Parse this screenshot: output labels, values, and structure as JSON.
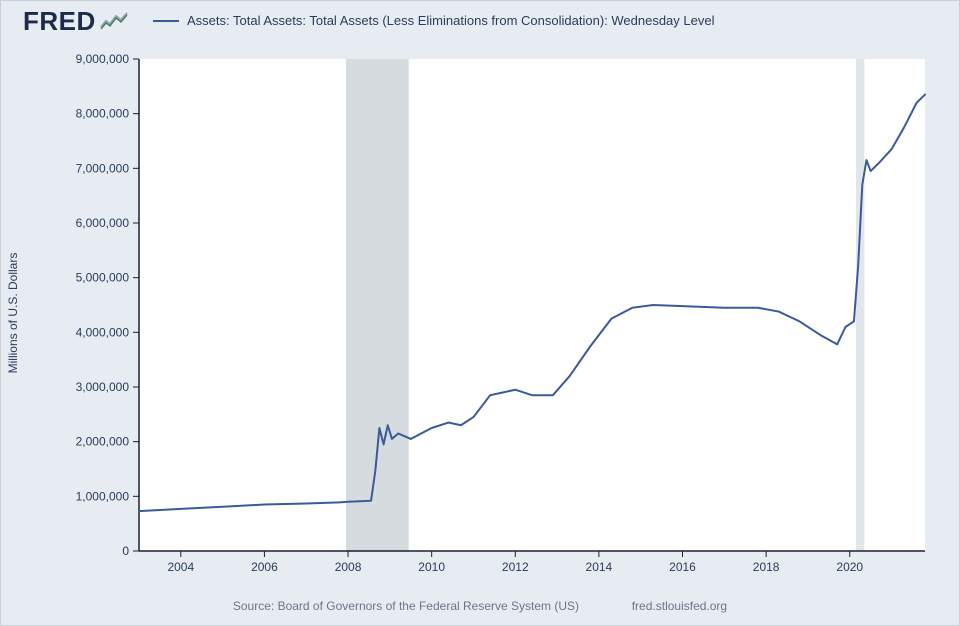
{
  "brand": "FRED",
  "legend_label": "Assets: Total Assets: Total Assets (Less Eliminations from Consolidation): Wednesday Level",
  "ylabel": "Millions of U.S. Dollars",
  "source_left": "Source: Board of Governors of the Federal Reserve System (US)",
  "source_right": "fred.stlouisfed.org",
  "chart": {
    "type": "line",
    "background_color": "#e6ecf2",
    "plot_background": "#ffffff",
    "recession_band_color": "#d6dbe0",
    "recession_band_light": "#e2e6ea",
    "grid_color": "#c4ccd6",
    "axis_color": "#1a2030",
    "line_color": "#3b5a9a",
    "line_width": 2,
    "tick_font_size": 12,
    "x_domain": [
      2003.0,
      2021.8
    ],
    "y_domain": [
      0,
      9000000
    ],
    "ytick_step": 1000000,
    "yticks": [
      0,
      1000000,
      2000000,
      3000000,
      4000000,
      5000000,
      6000000,
      7000000,
      8000000,
      9000000
    ],
    "xticks": [
      2004,
      2006,
      2008,
      2010,
      2012,
      2014,
      2016,
      2018,
      2020
    ],
    "recession_bands": [
      {
        "start": 2007.95,
        "end": 2009.45
      },
      {
        "start": 2020.15,
        "end": 2020.35
      }
    ],
    "series": [
      {
        "x": 2003.0,
        "y": 730000
      },
      {
        "x": 2004.0,
        "y": 770000
      },
      {
        "x": 2005.0,
        "y": 810000
      },
      {
        "x": 2006.0,
        "y": 850000
      },
      {
        "x": 2007.0,
        "y": 870000
      },
      {
        "x": 2007.8,
        "y": 890000
      },
      {
        "x": 2008.0,
        "y": 900000
      },
      {
        "x": 2008.55,
        "y": 920000
      },
      {
        "x": 2008.65,
        "y": 1450000
      },
      {
        "x": 2008.75,
        "y": 2250000
      },
      {
        "x": 2008.85,
        "y": 1950000
      },
      {
        "x": 2008.95,
        "y": 2300000
      },
      {
        "x": 2009.05,
        "y": 2050000
      },
      {
        "x": 2009.2,
        "y": 2150000
      },
      {
        "x": 2009.5,
        "y": 2050000
      },
      {
        "x": 2010.0,
        "y": 2250000
      },
      {
        "x": 2010.4,
        "y": 2350000
      },
      {
        "x": 2010.7,
        "y": 2300000
      },
      {
        "x": 2011.0,
        "y": 2450000
      },
      {
        "x": 2011.4,
        "y": 2850000
      },
      {
        "x": 2011.7,
        "y": 2900000
      },
      {
        "x": 2012.0,
        "y": 2950000
      },
      {
        "x": 2012.4,
        "y": 2850000
      },
      {
        "x": 2012.9,
        "y": 2850000
      },
      {
        "x": 2013.3,
        "y": 3200000
      },
      {
        "x": 2013.8,
        "y": 3750000
      },
      {
        "x": 2014.3,
        "y": 4250000
      },
      {
        "x": 2014.8,
        "y": 4450000
      },
      {
        "x": 2015.3,
        "y": 4500000
      },
      {
        "x": 2016.0,
        "y": 4480000
      },
      {
        "x": 2017.0,
        "y": 4450000
      },
      {
        "x": 2017.8,
        "y": 4450000
      },
      {
        "x": 2018.3,
        "y": 4380000
      },
      {
        "x": 2018.8,
        "y": 4200000
      },
      {
        "x": 2019.3,
        "y": 3950000
      },
      {
        "x": 2019.7,
        "y": 3780000
      },
      {
        "x": 2019.9,
        "y": 4100000
      },
      {
        "x": 2020.1,
        "y": 4200000
      },
      {
        "x": 2020.2,
        "y": 5200000
      },
      {
        "x": 2020.3,
        "y": 6700000
      },
      {
        "x": 2020.4,
        "y": 7150000
      },
      {
        "x": 2020.5,
        "y": 6950000
      },
      {
        "x": 2020.7,
        "y": 7100000
      },
      {
        "x": 2021.0,
        "y": 7350000
      },
      {
        "x": 2021.3,
        "y": 7750000
      },
      {
        "x": 2021.6,
        "y": 8200000
      },
      {
        "x": 2021.8,
        "y": 8350000
      }
    ]
  }
}
